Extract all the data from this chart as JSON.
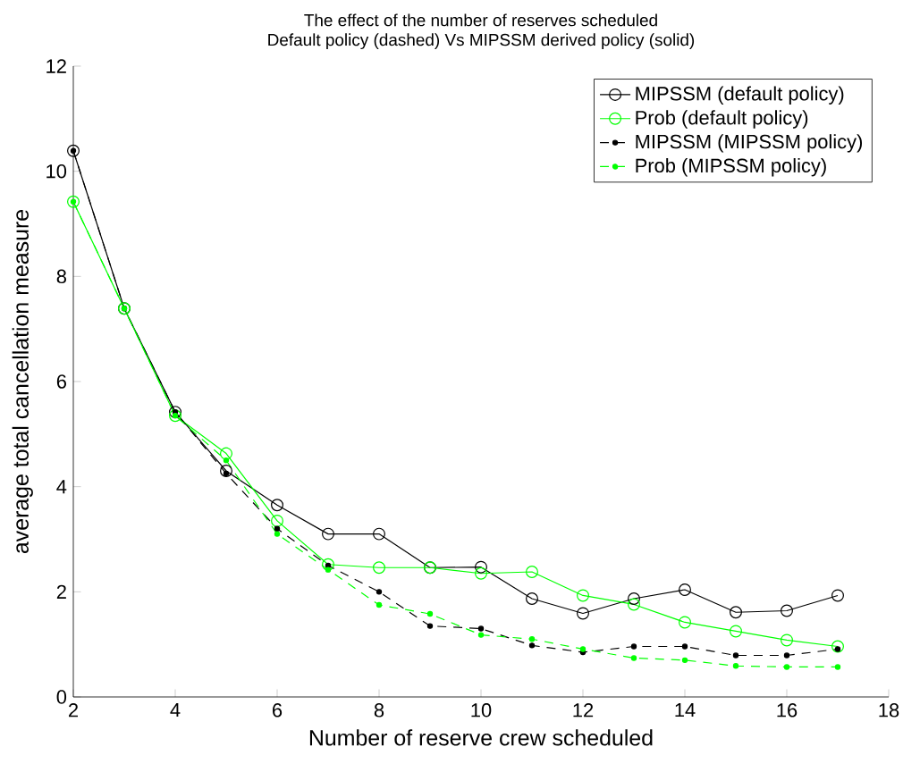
{
  "chart_data": {
    "type": "line",
    "title": "The effect of the number of reserves scheduled",
    "subtitle": "Default policy (dashed) Vs MIPSSM derived policy (solid)",
    "xlabel": "Number of reserve crew scheduled",
    "ylabel": "average total cancellation measure",
    "x": [
      2,
      3,
      4,
      5,
      6,
      7,
      8,
      9,
      10,
      11,
      12,
      13,
      14,
      15,
      16,
      17
    ],
    "series": [
      {
        "name": "MIPSSM (default policy)",
        "color": "#000000",
        "marker": "circle",
        "line_style": "solid",
        "values": [
          10.39,
          7.39,
          5.42,
          4.3,
          3.65,
          3.1,
          3.1,
          2.46,
          2.47,
          1.87,
          1.59,
          1.87,
          2.04,
          1.61,
          1.64,
          1.93
        ]
      },
      {
        "name": "Prob (default policy)",
        "color": "#00ff00",
        "marker": "circle",
        "line_style": "solid",
        "values": [
          9.42,
          7.39,
          5.35,
          4.63,
          3.35,
          2.52,
          2.46,
          2.46,
          2.35,
          2.38,
          1.93,
          1.76,
          1.42,
          1.25,
          1.08,
          0.96
        ]
      },
      {
        "name": "MIPSSM (MIPSSM policy)",
        "color": "#000000",
        "marker": "dot",
        "line_style": "dashed",
        "values": [
          10.39,
          7.39,
          5.42,
          4.25,
          3.2,
          2.5,
          2.0,
          1.35,
          1.3,
          0.98,
          0.85,
          0.96,
          0.96,
          0.79,
          0.79,
          0.91
        ]
      },
      {
        "name": "Prob (MIPSSM policy)",
        "color": "#00ff00",
        "marker": "dot",
        "line_style": "dashed",
        "values": [
          9.42,
          7.39,
          5.35,
          4.5,
          3.1,
          2.42,
          1.75,
          1.58,
          1.18,
          1.1,
          0.91,
          0.74,
          0.7,
          0.59,
          0.57,
          0.57
        ]
      }
    ],
    "xlim": [
      2,
      18
    ],
    "ylim": [
      0,
      12
    ],
    "xticks": [
      2,
      4,
      6,
      8,
      10,
      12,
      14,
      16,
      18
    ],
    "yticks": [
      0,
      2,
      4,
      6,
      8,
      10,
      12
    ],
    "grid": false,
    "legend": "top right"
  }
}
